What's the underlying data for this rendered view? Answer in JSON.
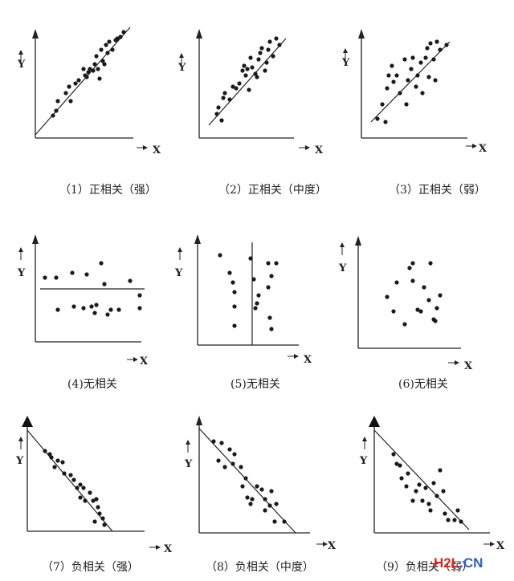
{
  "panels": [
    {
      "caption": "（1）正相关（强）",
      "y_label": "Y",
      "x_label": "X"
    },
    {
      "caption": "（2）正相关（中度）",
      "y_label": "Y",
      "x_label": "X"
    },
    {
      "caption": "（3）正相关（弱）",
      "y_label": "Y",
      "x_label": "X"
    },
    {
      "caption": "(4)无相关",
      "y_label": "Y",
      "x_label": "X"
    },
    {
      "caption": "(5)无相关",
      "y_label": "Y",
      "x_label": "X"
    },
    {
      "caption": "(6)无相关",
      "y_label": "Y",
      "x_label": "X"
    },
    {
      "caption": "（7）负相关（强）",
      "y_label": "Y",
      "x_label": "X"
    },
    {
      "caption": "（8）负相关（中度）",
      "y_label": "Y",
      "x_label": "X"
    },
    {
      "caption": "（9）负相关（弱）",
      "y_label": "Y",
      "x_label": "X"
    }
  ],
  "watermark": {
    "part1": "H2L",
    "part2": ".CN"
  }
}
